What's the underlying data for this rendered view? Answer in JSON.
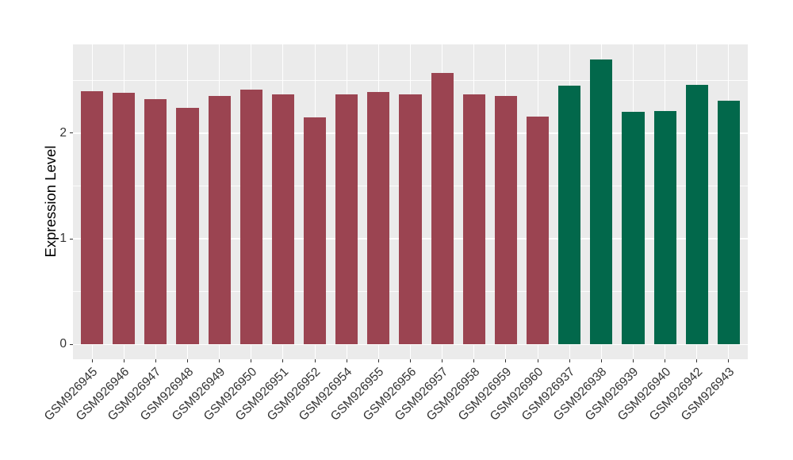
{
  "chart_data": {
    "type": "bar",
    "title": "",
    "xlabel": "",
    "ylabel": "Expression Level",
    "categories": [
      "GSM926945",
      "GSM926946",
      "GSM926947",
      "GSM926948",
      "GSM926949",
      "GSM926950",
      "GSM926951",
      "GSM926952",
      "GSM926954",
      "GSM926955",
      "GSM926956",
      "GSM926957",
      "GSM926958",
      "GSM926959",
      "GSM926960",
      "GSM926937",
      "GSM926938",
      "GSM926939",
      "GSM926940",
      "GSM926942",
      "GSM926943"
    ],
    "values": [
      2.4,
      2.38,
      2.32,
      2.24,
      2.35,
      2.41,
      2.37,
      2.15,
      2.37,
      2.39,
      2.37,
      2.57,
      2.37,
      2.35,
      2.16,
      2.45,
      2.7,
      2.2,
      2.21,
      2.46,
      2.31
    ],
    "groups": [
      "group1",
      "group1",
      "group1",
      "group1",
      "group1",
      "group1",
      "group1",
      "group1",
      "group1",
      "group1",
      "group1",
      "group1",
      "group1",
      "group1",
      "group1",
      "group2",
      "group2",
      "group2",
      "group2",
      "group2",
      "group2"
    ],
    "group_colors": {
      "group1": "#9B4451",
      "group2": "#02684B"
    },
    "yticks": [
      {
        "value": 0,
        "label": "0"
      },
      {
        "value": 1,
        "label": "1"
      },
      {
        "value": 2,
        "label": "2"
      }
    ],
    "minor_gridlines": [
      0.5,
      1.5,
      2.5
    ],
    "ylim": [
      -0.14,
      2.84
    ],
    "grid": "on",
    "legend": "none",
    "panel_background": "#EBEBEB",
    "gridline_color": "#FFFFFF",
    "axis_text_color": "#333333",
    "tick_color": "#333333",
    "bar_width_fraction": 0.7
  }
}
